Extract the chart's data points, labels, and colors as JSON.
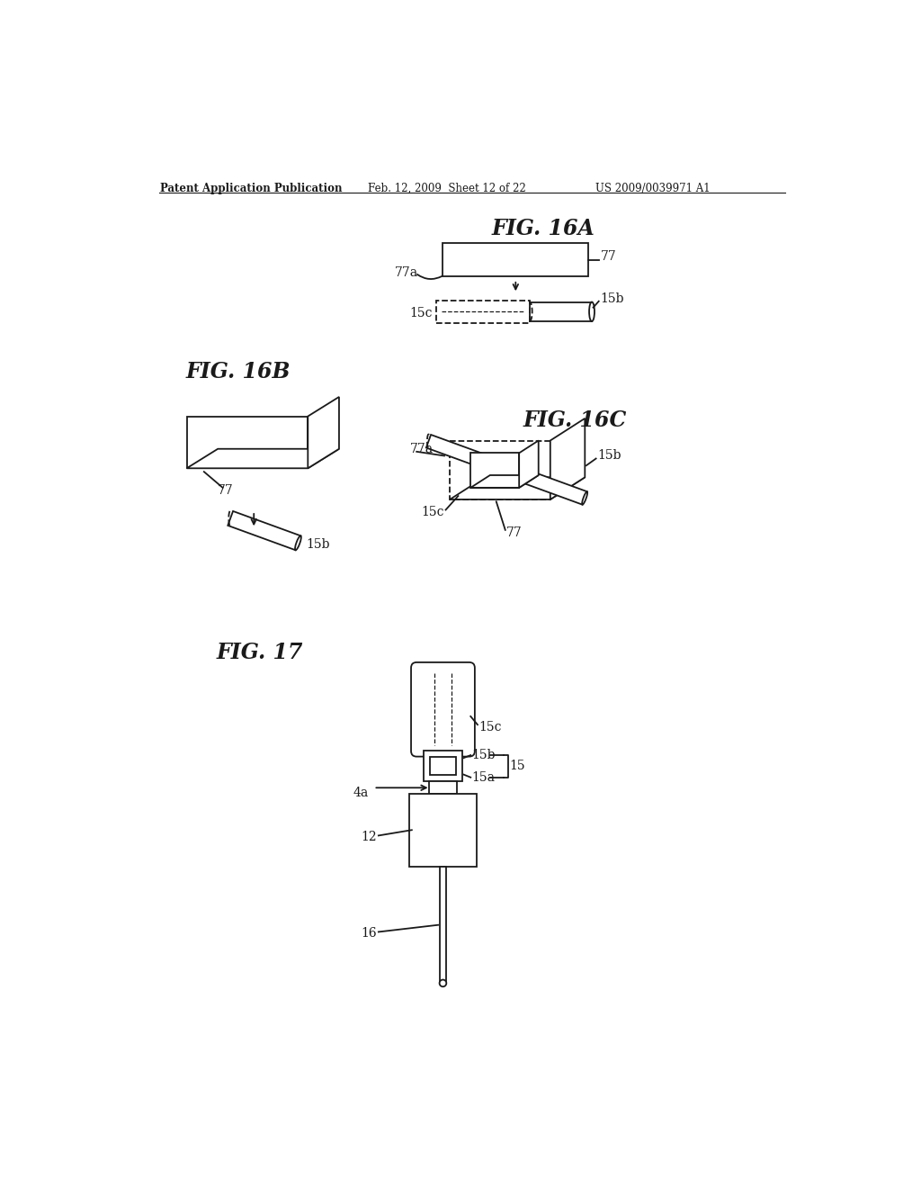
{
  "bg_color": "#ffffff",
  "line_color": "#1a1a1a",
  "header_text": "Patent Application Publication",
  "header_date": "Feb. 12, 2009  Sheet 12 of 22",
  "header_patent": "US 2009/0039971 A1",
  "fig16a_title": "FIG. 16A",
  "fig16b_title": "FIG. 16B",
  "fig16c_title": "FIG. 16C",
  "fig17_title": "FIG. 17"
}
